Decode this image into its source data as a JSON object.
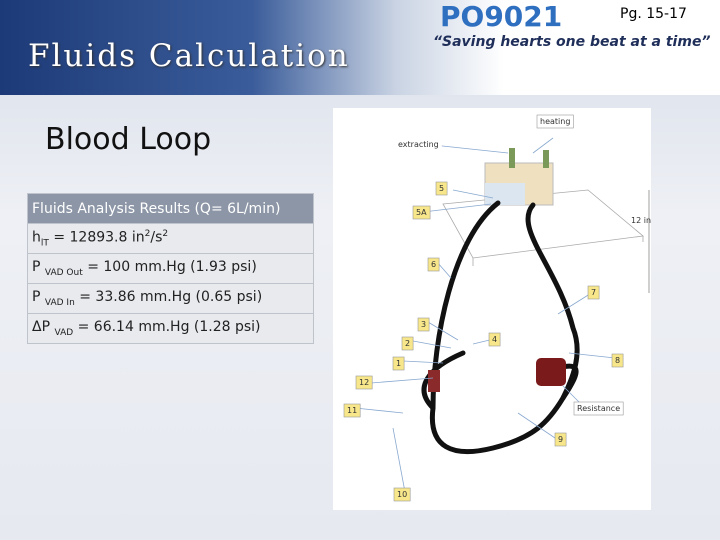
{
  "header": {
    "page": "Pg. 15-17",
    "logo": "PO9021",
    "slogan": "“Saving hearts one beat at a time”",
    "title": "Fluids Calculation"
  },
  "subtitle": "Blood Loop",
  "table": {
    "header": "Fluids Analysis Results (Q= 6L/min)",
    "rows": [
      [
        "h",
        "lT",
        " = 12893.8 in",
        "2",
        "/s",
        "2"
      ],
      [
        "P ",
        "VAD Out",
        " = 100 mm.Hg (1.93 psi)"
      ],
      [
        "P ",
        "VAD In",
        " = 33.86 mm.Hg (0.65 psi)"
      ],
      [
        "ΔP ",
        "VAD",
        " = 66.14 mm.Hg (1.28 psi)"
      ]
    ]
  },
  "diagram": {
    "labels": [
      "heating",
      "extracting",
      "5",
      "5A",
      "6",
      "7",
      "3",
      "2",
      "4",
      "1",
      "8",
      "12",
      "11",
      "Resistance",
      "9",
      "10"
    ],
    "dimension": "12 in"
  }
}
